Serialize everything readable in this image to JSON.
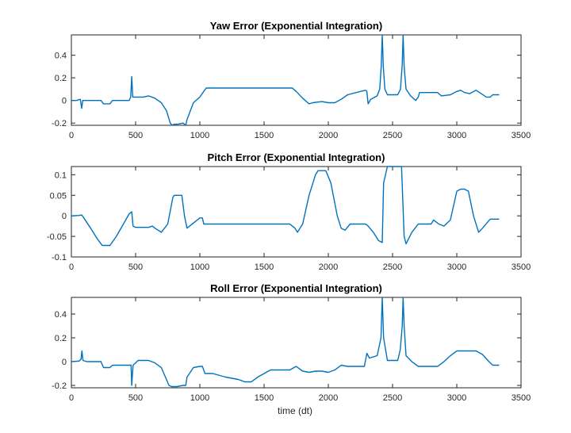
{
  "figure": {
    "xlabel": "time (dt)"
  },
  "chart_data": [
    {
      "type": "line",
      "title": "Yaw Error (Exponential Integration)",
      "xlabel": "",
      "ylabel": "",
      "xlim": [
        0,
        3500
      ],
      "ylim": [
        -0.22,
        0.58
      ],
      "xticks": [
        0,
        500,
        1000,
        1500,
        2000,
        2500,
        3000,
        3500
      ],
      "yticks": [
        -0.2,
        0,
        0.2,
        0.4
      ],
      "color": "#0072BD",
      "series": [
        {
          "points": [
            [
              0,
              0
            ],
            [
              40,
              0
            ],
            [
              70,
              0.01
            ],
            [
              80,
              -0.07
            ],
            [
              88,
              0
            ],
            [
              120,
              0
            ],
            [
              230,
              0
            ],
            [
              250,
              -0.03
            ],
            [
              300,
              -0.03
            ],
            [
              320,
              0
            ],
            [
              450,
              0
            ],
            [
              462,
              0.03
            ],
            [
              470,
              0.21
            ],
            [
              478,
              0.03
            ],
            [
              520,
              0.03
            ],
            [
              560,
              0.03
            ],
            [
              600,
              0.04
            ],
            [
              650,
              0.02
            ],
            [
              700,
              -0.02
            ],
            [
              740,
              -0.09
            ],
            [
              770,
              -0.2
            ],
            [
              785,
              -0.22
            ],
            [
              800,
              -0.21
            ],
            [
              830,
              -0.21
            ],
            [
              870,
              -0.2
            ],
            [
              890,
              -0.22
            ],
            [
              900,
              -0.17
            ],
            [
              950,
              -0.02
            ],
            [
              1000,
              0.03
            ],
            [
              1030,
              0.08
            ],
            [
              1050,
              0.11
            ],
            [
              1200,
              0.11
            ],
            [
              1400,
              0.11
            ],
            [
              1600,
              0.11
            ],
            [
              1720,
              0.11
            ],
            [
              1750,
              0.08
            ],
            [
              1800,
              0.02
            ],
            [
              1850,
              -0.03
            ],
            [
              1880,
              -0.02
            ],
            [
              1950,
              -0.01
            ],
            [
              2000,
              -0.02
            ],
            [
              2050,
              -0.02
            ],
            [
              2100,
              0.01
            ],
            [
              2150,
              0.05
            ],
            [
              2250,
              0.08
            ],
            [
              2290,
              0.09
            ],
            [
              2300,
              0.08
            ],
            [
              2310,
              -0.03
            ],
            [
              2330,
              0.01
            ],
            [
              2380,
              0.04
            ],
            [
              2400,
              0.1
            ],
            [
              2412,
              0.3
            ],
            [
              2420,
              0.58
            ],
            [
              2428,
              0.3
            ],
            [
              2440,
              0.1
            ],
            [
              2460,
              0.05
            ],
            [
              2540,
              0.05
            ],
            [
              2562,
              0.1
            ],
            [
              2575,
              0.32
            ],
            [
              2582,
              0.58
            ],
            [
              2590,
              0.3
            ],
            [
              2605,
              0.1
            ],
            [
              2640,
              0.04
            ],
            [
              2680,
              0
            ],
            [
              2700,
              0.03
            ],
            [
              2710,
              0.07
            ],
            [
              2750,
              0.07
            ],
            [
              2850,
              0.07
            ],
            [
              2880,
              0.04
            ],
            [
              2950,
              0.05
            ],
            [
              3000,
              0.08
            ],
            [
              3030,
              0.09
            ],
            [
              3060,
              0.07
            ],
            [
              3100,
              0.06
            ],
            [
              3150,
              0.09
            ],
            [
              3190,
              0.06
            ],
            [
              3230,
              0.03
            ],
            [
              3260,
              0.03
            ],
            [
              3280,
              0.05
            ],
            [
              3330,
              0.05
            ]
          ]
        }
      ]
    },
    {
      "type": "line",
      "title": "Pitch Error (Exponential Integration)",
      "xlabel": "",
      "ylabel": "",
      "xlim": [
        0,
        3500
      ],
      "ylim": [
        -0.1,
        0.12
      ],
      "xticks": [
        0,
        500,
        1000,
        1500,
        2000,
        2500,
        3000,
        3500
      ],
      "yticks": [
        -0.1,
        -0.05,
        0,
        0.05,
        0.1
      ],
      "color": "#0072BD",
      "series": [
        {
          "points": [
            [
              0,
              0
            ],
            [
              60,
              0.001
            ],
            [
              80,
              0.002
            ],
            [
              90,
              -0.002
            ],
            [
              150,
              -0.03
            ],
            [
              200,
              -0.055
            ],
            [
              240,
              -0.072
            ],
            [
              300,
              -0.072
            ],
            [
              350,
              -0.05
            ],
            [
              450,
              0.005
            ],
            [
              470,
              0.01
            ],
            [
              480,
              -0.025
            ],
            [
              500,
              -0.028
            ],
            [
              600,
              -0.028
            ],
            [
              630,
              -0.025
            ],
            [
              650,
              -0.03
            ],
            [
              700,
              -0.04
            ],
            [
              750,
              -0.02
            ],
            [
              790,
              0.045
            ],
            [
              800,
              0.05
            ],
            [
              860,
              0.05
            ],
            [
              880,
              0
            ],
            [
              900,
              -0.03
            ],
            [
              1000,
              -0.005
            ],
            [
              1020,
              -0.005
            ],
            [
              1030,
              -0.02
            ],
            [
              1100,
              -0.02
            ],
            [
              1300,
              -0.02
            ],
            [
              1500,
              -0.02
            ],
            [
              1700,
              -0.02
            ],
            [
              1740,
              -0.03
            ],
            [
              1760,
              -0.04
            ],
            [
              1800,
              -0.02
            ],
            [
              1850,
              0.05
            ],
            [
              1900,
              0.1
            ],
            [
              1920,
              0.11
            ],
            [
              1980,
              0.11
            ],
            [
              2020,
              0.08
            ],
            [
              2070,
              0
            ],
            [
              2100,
              -0.03
            ],
            [
              2130,
              -0.035
            ],
            [
              2170,
              -0.02
            ],
            [
              2250,
              -0.02
            ],
            [
              2290,
              -0.02
            ],
            [
              2310,
              -0.025
            ],
            [
              2350,
              -0.04
            ],
            [
              2390,
              -0.06
            ],
            [
              2420,
              -0.065
            ],
            [
              2430,
              0.08
            ],
            [
              2460,
              0.12
            ],
            [
              2540,
              0.12
            ],
            [
              2570,
              0.12
            ],
            [
              2590,
              -0.05
            ],
            [
              2605,
              -0.068
            ],
            [
              2650,
              -0.04
            ],
            [
              2700,
              -0.02
            ],
            [
              2750,
              -0.02
            ],
            [
              2800,
              -0.02
            ],
            [
              2820,
              -0.01
            ],
            [
              2860,
              -0.02
            ],
            [
              2900,
              -0.025
            ],
            [
              2950,
              -0.01
            ],
            [
              3000,
              0.06
            ],
            [
              3030,
              0.065
            ],
            [
              3060,
              0.065
            ],
            [
              3090,
              0.06
            ],
            [
              3130,
              0
            ],
            [
              3170,
              -0.04
            ],
            [
              3200,
              -0.03
            ],
            [
              3260,
              -0.008
            ],
            [
              3300,
              -0.008
            ],
            [
              3330,
              -0.008
            ]
          ]
        }
      ]
    },
    {
      "type": "line",
      "title": "Roll Error (Exponential Integration)",
      "xlabel": "time (dt)",
      "ylabel": "",
      "xlim": [
        0,
        3500
      ],
      "ylim": [
        -0.22,
        0.54
      ],
      "xticks": [
        0,
        500,
        1000,
        1500,
        2000,
        2500,
        3000,
        3500
      ],
      "yticks": [
        -0.2,
        0,
        0.2,
        0.4
      ],
      "color": "#0072BD",
      "series": [
        {
          "points": [
            [
              0,
              0
            ],
            [
              60,
              0.005
            ],
            [
              75,
              0.02
            ],
            [
              82,
              0.09
            ],
            [
              90,
              0.01
            ],
            [
              120,
              0
            ],
            [
              230,
              0
            ],
            [
              250,
              -0.05
            ],
            [
              300,
              -0.05
            ],
            [
              320,
              -0.03
            ],
            [
              350,
              -0.03
            ],
            [
              450,
              -0.03
            ],
            [
              465,
              -0.03
            ],
            [
              470,
              -0.2
            ],
            [
              480,
              -0.03
            ],
            [
              520,
              0.01
            ],
            [
              560,
              0.01
            ],
            [
              600,
              0.01
            ],
            [
              650,
              -0.01
            ],
            [
              700,
              -0.05
            ],
            [
              760,
              -0.2
            ],
            [
              780,
              -0.21
            ],
            [
              820,
              -0.21
            ],
            [
              870,
              -0.2
            ],
            [
              890,
              -0.2
            ],
            [
              900,
              -0.13
            ],
            [
              950,
              -0.05
            ],
            [
              1000,
              -0.04
            ],
            [
              1020,
              -0.04
            ],
            [
              1040,
              -0.1
            ],
            [
              1100,
              -0.1
            ],
            [
              1200,
              -0.13
            ],
            [
              1300,
              -0.15
            ],
            [
              1350,
              -0.17
            ],
            [
              1400,
              -0.17
            ],
            [
              1450,
              -0.13
            ],
            [
              1500,
              -0.1
            ],
            [
              1550,
              -0.07
            ],
            [
              1600,
              -0.07
            ],
            [
              1700,
              -0.07
            ],
            [
              1750,
              -0.04
            ],
            [
              1800,
              -0.08
            ],
            [
              1850,
              -0.09
            ],
            [
              1900,
              -0.08
            ],
            [
              1950,
              -0.08
            ],
            [
              2000,
              -0.09
            ],
            [
              2050,
              -0.07
            ],
            [
              2100,
              -0.03
            ],
            [
              2150,
              -0.04
            ],
            [
              2250,
              -0.04
            ],
            [
              2280,
              -0.04
            ],
            [
              2300,
              0.07
            ],
            [
              2320,
              0.03
            ],
            [
              2380,
              0.05
            ],
            [
              2410,
              0.2
            ],
            [
              2420,
              0.54
            ],
            [
              2430,
              0.2
            ],
            [
              2460,
              0.01
            ],
            [
              2540,
              0.01
            ],
            [
              2560,
              0.1
            ],
            [
              2575,
              0.3
            ],
            [
              2582,
              0.54
            ],
            [
              2590,
              0.3
            ],
            [
              2605,
              0.05
            ],
            [
              2650,
              0
            ],
            [
              2700,
              -0.04
            ],
            [
              2750,
              -0.04
            ],
            [
              2850,
              -0.04
            ],
            [
              2900,
              0
            ],
            [
              2950,
              0.05
            ],
            [
              3000,
              0.09
            ],
            [
              3100,
              0.09
            ],
            [
              3150,
              0.09
            ],
            [
              3200,
              0.06
            ],
            [
              3250,
              0
            ],
            [
              3280,
              -0.03
            ],
            [
              3330,
              -0.03
            ]
          ]
        }
      ]
    }
  ]
}
